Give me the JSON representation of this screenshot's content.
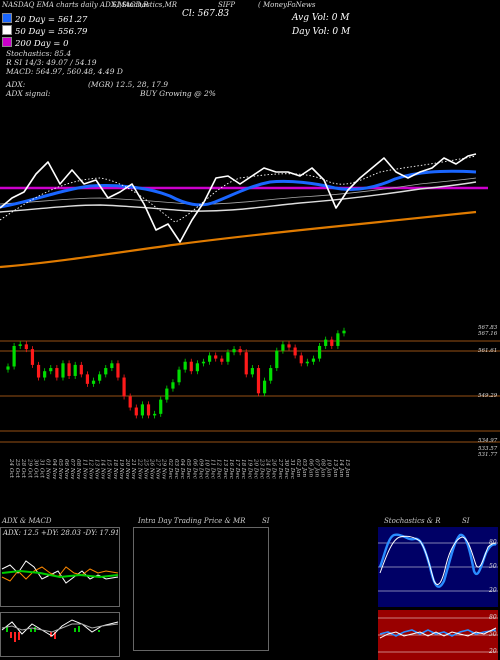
{
  "header": {
    "line1": "NASDAQ EMA charts daily ADX,MACD,R",
    "line1b": "SI,Stochastics,MR",
    "line1c": "Cl: 567.83",
    "line1d": "( MoneyFoNews",
    "ticker": "SIFP",
    "day_vol": "Day Vol: 0   M",
    "avg_vol": "Avg Vol: 0   M"
  },
  "legend": [
    {
      "label": "20  Day  =  561.27",
      "color": "#1a66ff"
    },
    {
      "label": "50  Day  =  556.79",
      "color": "#ffffff"
    },
    {
      "label": "200  Day  =  0",
      "color": "#cc00cc"
    }
  ],
  "info": {
    "stoch": "Stochastics: 85.4",
    "rsi": "R                  SI 14/3: 49.07 / 54.19",
    "macd": "MACD: 564.97,  560.48,  4.49 D",
    "adx": "ADX:",
    "adx_val": "(MGR) 12.5,  28,  17.9",
    "adx_signal": "ADX  signal:",
    "signal_text": "BUY Growing @ 2%"
  },
  "price_labels": [
    "567.83",
    "567.16",
    "561.61",
    "549.29",
    "534.97",
    "533.57",
    "531.77"
  ],
  "panels": {
    "adx_title": "ADX  & MACD",
    "adx_values": "ADX: 12.5  +DY: 28.03  -DY: 17.91",
    "intra_title": "Intra  Day  Trading  Price   & MR",
    "intra_suffix": "SI",
    "stoch_title": "Stochastics  & R",
    "stoch_suffix": "SI",
    "stoch_ticks": [
      "80",
      "50",
      "20"
    ],
    "rsi_ticks": [
      "80",
      "50",
      "20"
    ]
  },
  "chart_data": {
    "type": "candlestick",
    "x_labels": [
      "24 Oct",
      "25 Oct",
      "28 Oct",
      "29 Oct",
      "30 Oct",
      "31 Oct",
      "01 Nov",
      "04 Nov",
      "05 Nov",
      "06 Nov",
      "07 Nov",
      "08 Nov",
      "11 Nov",
      "12 Nov",
      "13 Nov",
      "14 Nov",
      "15 Nov",
      "18 Nov",
      "19 Nov",
      "20 Nov",
      "21 Nov",
      "22 Nov",
      "25 Nov",
      "26 Nov",
      "27 Nov",
      "29 Nov",
      "02 Dec",
      "03 Dec",
      "04 Dec",
      "05 Dec",
      "06 Dec",
      "09 Dec",
      "10 Dec",
      "11 Dec",
      "12 Dec",
      "13 Dec",
      "16 Dec",
      "17 Dec",
      "18 Dec",
      "19 Dec",
      "20 Dec",
      "23 Dec",
      "24 Dec",
      "26 Dec",
      "27 Dec",
      "30 Dec",
      "31 Dec",
      "02 Jan",
      "03 Jan",
      "06 Jan",
      "07 Jan",
      "08 Jan",
      "10 Jan",
      "13 Jan",
      "14 Jan",
      "15 Jan"
    ],
    "ylim": [
      531,
      569
    ],
    "closes": [
      556.5,
      563.0,
      563.5,
      562.0,
      557.0,
      553.0,
      555.0,
      556.0,
      553.0,
      557.5,
      553.5,
      557.0,
      554.0,
      551.0,
      552.0,
      554.0,
      556.0,
      557.5,
      553.0,
      547.0,
      543.5,
      541.0,
      544.5,
      541.0,
      541.5,
      546.0,
      549.5,
      551.5,
      555.5,
      558.0,
      555.0,
      557.5,
      558.0,
      560.0,
      559.0,
      558.0,
      561.0,
      562.0,
      561.0,
      554.0,
      556.0,
      548.0,
      552.0,
      556.0,
      561.5,
      563.5,
      562.5,
      560.0,
      557.5,
      558.0,
      559.0,
      563.0,
      565.0,
      563.0,
      567.0,
      567.83
    ]
  }
}
